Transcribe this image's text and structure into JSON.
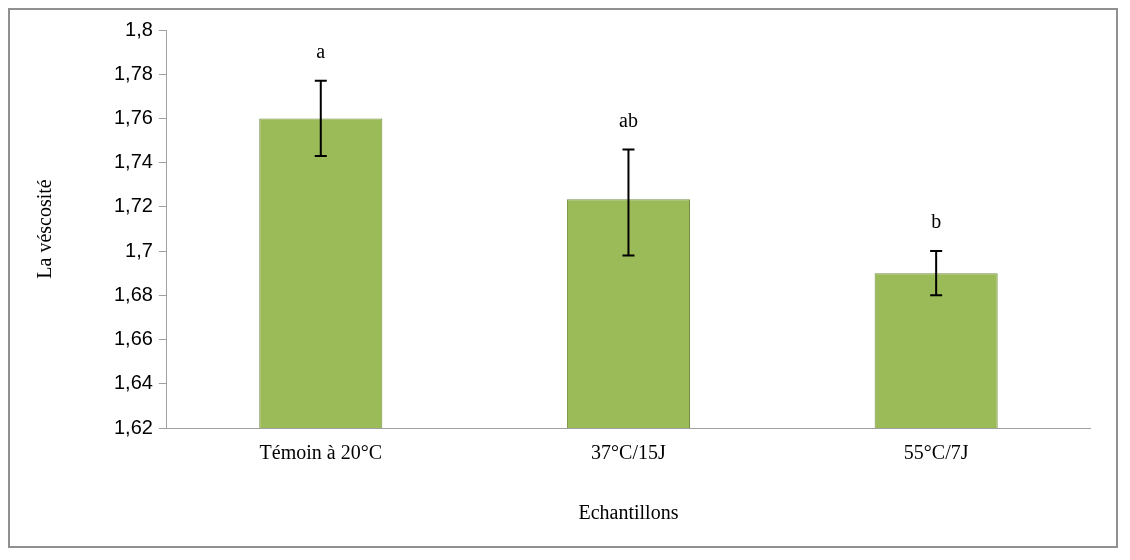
{
  "chart_data": {
    "type": "bar",
    "xlabel": "Echantillons",
    "ylabel": "La véscosité",
    "categories": [
      "Témoin à 20°C",
      "37°C/15J",
      "55°C/7J"
    ],
    "values": [
      1.76,
      1.7235,
      1.69
    ],
    "errors": [
      [
        1.743,
        1.777
      ],
      [
        1.698,
        1.746
      ],
      [
        1.68,
        1.7
      ]
    ],
    "color": "#9bbb59",
    "ylim": [
      1.62,
      1.8
    ],
    "yticks": [
      {
        "value": 1.62,
        "label": "1,62"
      },
      {
        "value": 1.64,
        "label": "1,64"
      },
      {
        "value": 1.66,
        "label": "1,66"
      },
      {
        "value": 1.68,
        "label": "1,68"
      },
      {
        "value": 1.7,
        "label": "1,7"
      },
      {
        "value": 1.72,
        "label": "1,72"
      },
      {
        "value": 1.74,
        "label": "1,74"
      },
      {
        "value": 1.76,
        "label": "1,76"
      },
      {
        "value": 1.78,
        "label": "1,78"
      },
      {
        "value": 1.8,
        "label": "1,8"
      }
    ],
    "annotations": [
      "a",
      "ab",
      "b"
    ],
    "grid": false,
    "legend": false
  }
}
